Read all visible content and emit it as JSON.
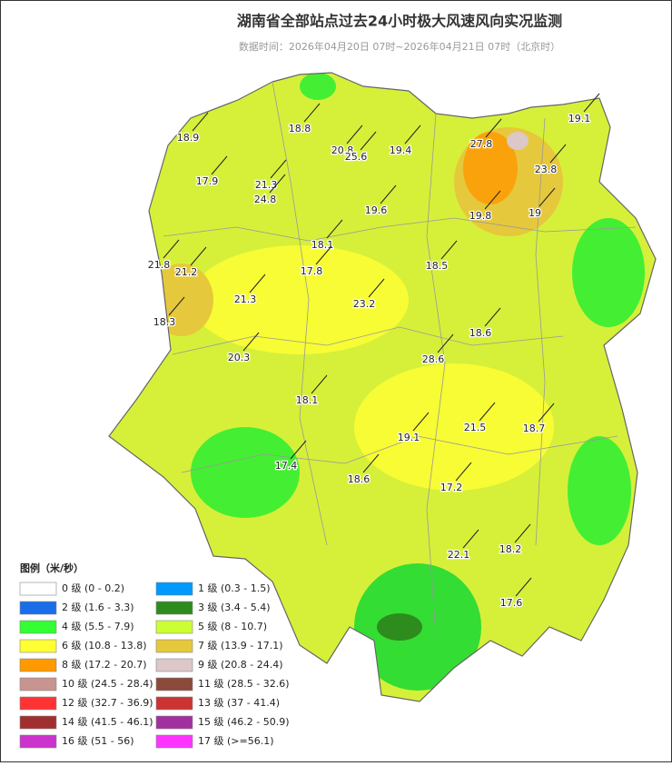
{
  "header": {
    "title": "湖南省全部站点过去24小时极大风速风向实况监测",
    "subtitle": "数据时间：2026年04月20日 07时~2026年04月21日 07时（北京时）"
  },
  "stations": [
    18.9,
    18.8,
    20.8,
    25.6,
    19.4,
    27.8,
    19.1,
    17.9,
    21.3,
    24.8,
    19.6,
    19.8,
    23.8,
    19,
    18.1,
    21.8,
    21.2,
    17.8,
    18.5,
    21.3,
    23.2,
    18.3,
    18.6,
    28.6,
    20.3,
    18.1,
    21.5,
    18.7,
    19.1,
    17.4,
    18.6,
    17.2,
    22.1,
    18.2,
    17.6
  ],
  "legend": {
    "title": "图例（米/秒）",
    "items": [
      {
        "label": "0 级 (0 - 0.2)",
        "color": "#ffffff"
      },
      {
        "label": "1 级 (0.3 - 1.5)",
        "color": "#0099ff"
      },
      {
        "label": "2 级 (1.6 - 3.3)",
        "color": "#1a6ee8"
      },
      {
        "label": "3 级 (3.4 - 5.4)",
        "color": "#2e8b1e"
      },
      {
        "label": "4 级 (5.5 - 7.9)",
        "color": "#33ff33"
      },
      {
        "label": "5 级 (8 - 10.7)",
        "color": "#ccff33"
      },
      {
        "label": "6 级 (10.8 - 13.8)",
        "color": "#ffff33"
      },
      {
        "label": "7 级 (13.9 - 17.1)",
        "color": "#e6c83c"
      },
      {
        "label": "8 级 (17.2 - 20.7)",
        "color": "#ff9900"
      },
      {
        "label": "9 级 (20.8 - 24.4)",
        "color": "#dcc8c8"
      },
      {
        "label": "10 级 (24.5 - 28.4)",
        "color": "#c89490"
      },
      {
        "label": "11 级 (28.5 - 32.6)",
        "color": "#8b4a3c"
      },
      {
        "label": "12 级 (32.7 - 36.9)",
        "color": "#ff3333"
      },
      {
        "label": "13 级 (37 - 41.4)",
        "color": "#cc3333"
      },
      {
        "label": "14 级 (41.5 - 46.1)",
        "color": "#a03030"
      },
      {
        "label": "15 级 (46.2 - 50.9)",
        "color": "#a030a0"
      },
      {
        "label": "16 级 (51 - 56)",
        "color": "#cc33cc"
      },
      {
        "label": "17 级 (>=56.1)",
        "color": "#ff33ff"
      }
    ]
  }
}
